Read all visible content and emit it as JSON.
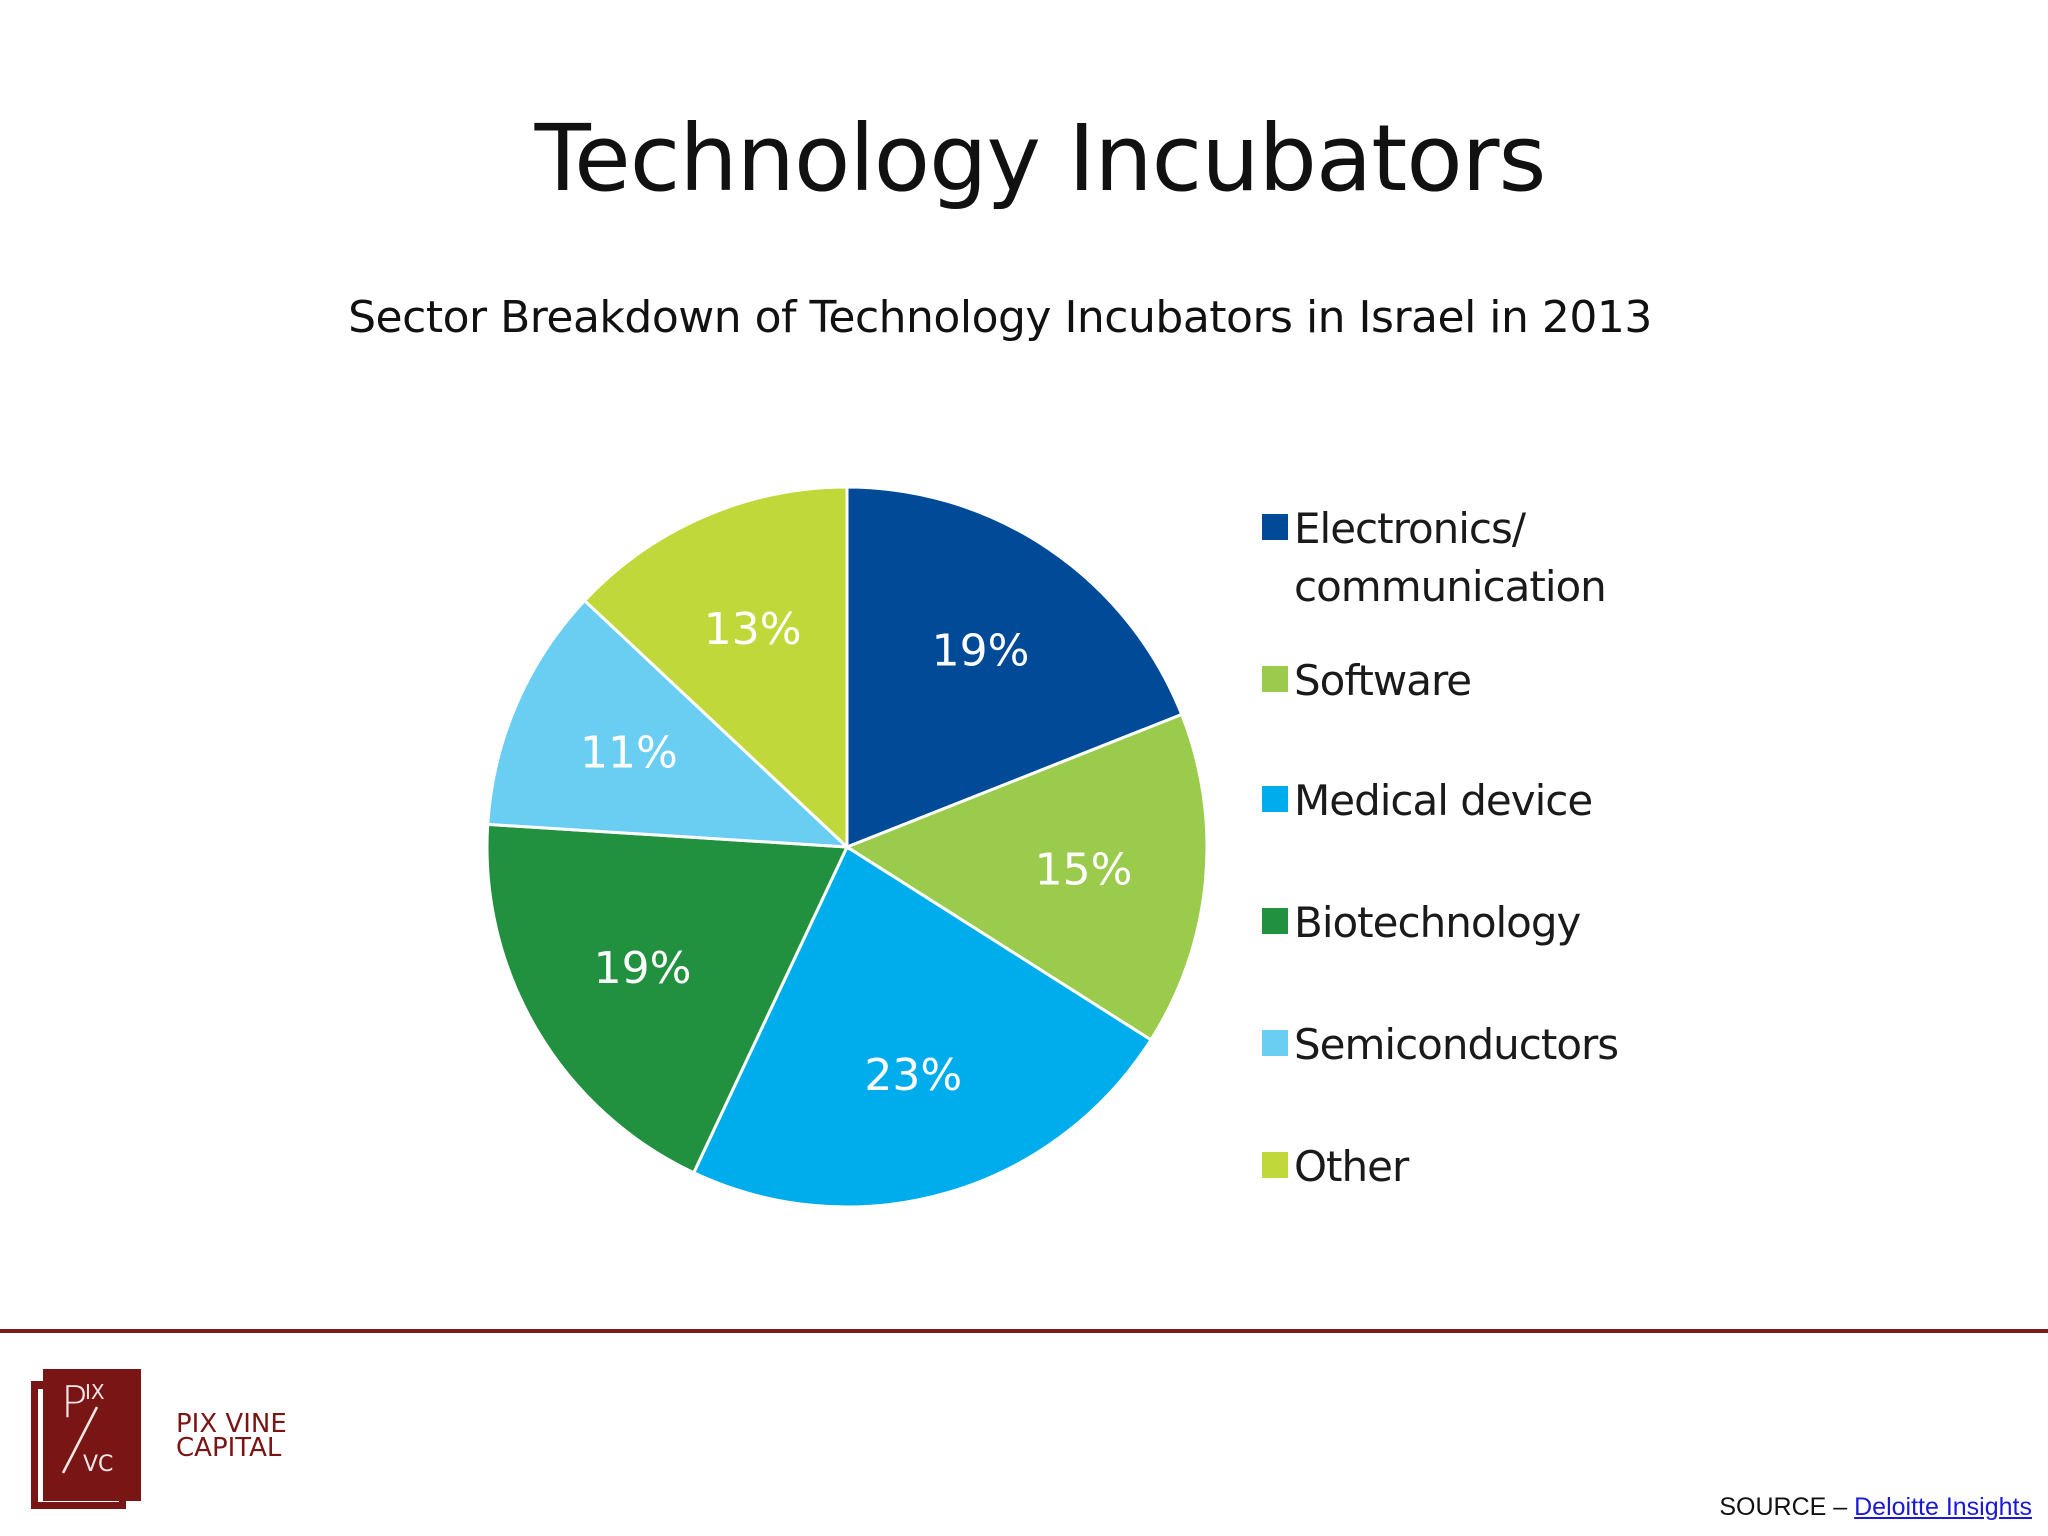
{
  "slide": {
    "title": "Technology Incubators",
    "subtitle": "Sector Breakdown of Technology Incubators in Israel in 2013"
  },
  "chart_data": {
    "type": "pie",
    "title": "Sector Breakdown of Technology Incubators in Israel in 2013",
    "categories": [
      "Electronics/ communication",
      "Software",
      "Medical device",
      "Biotechnology",
      "Semiconductors",
      "Other"
    ],
    "values": [
      19,
      15,
      23,
      19,
      11,
      13
    ],
    "labels": [
      "19%",
      "15%",
      "23%",
      "19%",
      "11%",
      "13%"
    ],
    "colors": [
      "#004a97",
      "#9bcb4c",
      "#00adec",
      "#22913f",
      "#6acef3",
      "#c1d83b"
    ],
    "start_angle": "12 o'clock, clockwise",
    "legend_position": "right"
  },
  "legend": {
    "items": [
      {
        "line1": "Electronics/",
        "line2": "communication",
        "color": "#004a97"
      },
      {
        "line1": "Software",
        "color": "#9bcb4c"
      },
      {
        "line1": "Medical device",
        "color": "#00adec"
      },
      {
        "line1": "Biotechnology",
        "color": "#22913f"
      },
      {
        "line1": "Semiconductors",
        "color": "#6acef3"
      },
      {
        "line1": "Other",
        "color": "#c1d83b"
      }
    ]
  },
  "footer": {
    "brand_line1": "PIX VINE",
    "brand_line2": "CAPITAL",
    "logo_top": "P",
    "logo_sup": "IX",
    "logo_bottom": "VC",
    "source_prefix": "SOURCE – ",
    "source_link": "Deloitte Insights",
    "accent_color": "#7a1515"
  }
}
